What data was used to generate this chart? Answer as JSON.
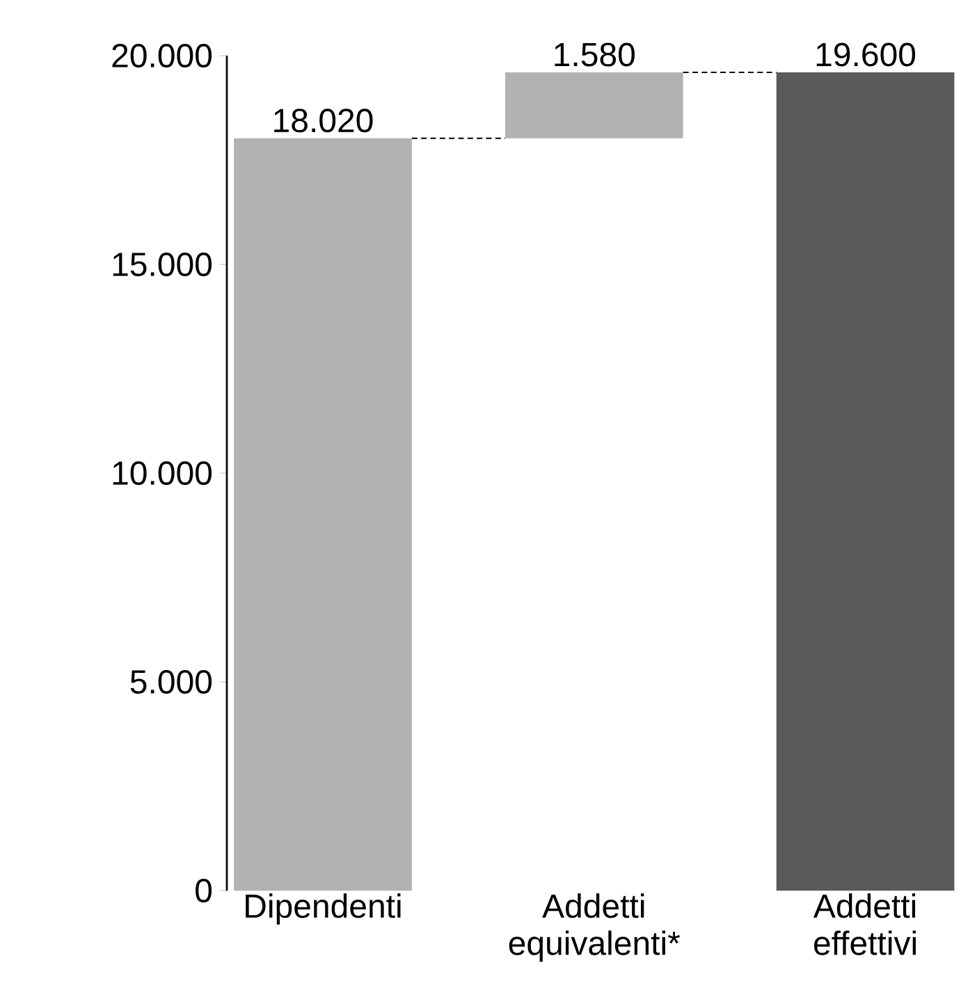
{
  "chart_data": {
    "type": "bar",
    "categories": [
      "Dipendenti",
      "Addetti equivalenti*",
      "Addetti effettivi"
    ],
    "values": [
      18020,
      1580,
      19600
    ],
    "base": [
      0,
      18020,
      0
    ],
    "colors": [
      "#b2b2b2",
      "#b2b2b2",
      "#5a5a5a"
    ],
    "value_labels": [
      "18.020",
      "1.580",
      "19.600"
    ],
    "ylim": [
      0,
      20000
    ],
    "yticks": [
      {
        "value": 0,
        "label": "0"
      },
      {
        "value": 5000,
        "label": "5.000"
      },
      {
        "value": 10000,
        "label": "10.000"
      },
      {
        "value": 15000,
        "label": "15.000"
      },
      {
        "value": 20000,
        "label": "20.000"
      }
    ],
    "grid": false
  }
}
